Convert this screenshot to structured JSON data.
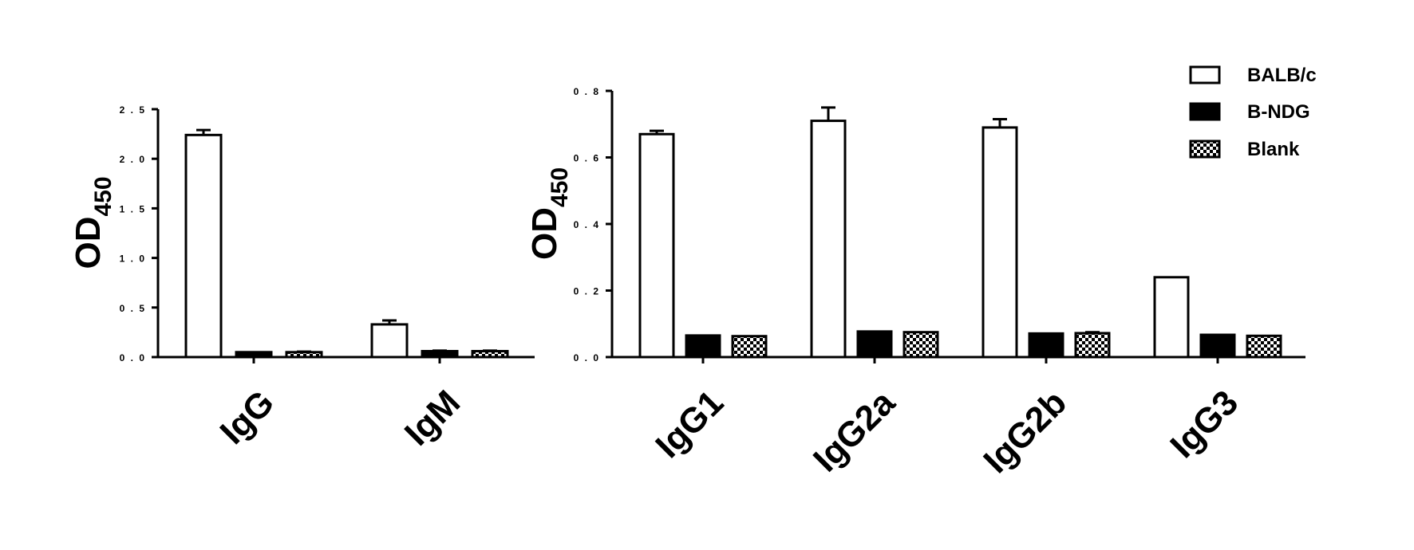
{
  "legend": [
    {
      "name": "BALB/c",
      "fill": "#ffffff"
    },
    {
      "name": "B-NDG",
      "fill": "#000000"
    },
    {
      "name": "Blank",
      "fill": "checker"
    }
  ],
  "chart_data": [
    {
      "type": "bar",
      "ylabel": "OD",
      "ylabel_subscript": "450",
      "ylim": [
        0,
        2.5
      ],
      "yticks": [
        "0.0",
        "0.5",
        "1.0",
        "1.5",
        "2.0",
        "2.5"
      ],
      "categories": [
        "IgG",
        "IgM"
      ],
      "series": [
        {
          "name": "BALB/c",
          "values": [
            2.24,
            0.33
          ],
          "errors": [
            0.05,
            0.04
          ]
        },
        {
          "name": "B-NDG",
          "values": [
            0.05,
            0.06
          ],
          "errors": [
            0.0,
            0.005
          ]
        },
        {
          "name": "Blank",
          "values": [
            0.05,
            0.06
          ],
          "errors": [
            0.005,
            0.005
          ]
        }
      ]
    },
    {
      "type": "bar",
      "ylabel": "OD",
      "ylabel_subscript": "450",
      "ylim": [
        0,
        0.8
      ],
      "yticks": [
        "0.0",
        "0.2",
        "0.4",
        "0.6",
        "0.8"
      ],
      "categories": [
        "IgG1",
        "IgG2a",
        "IgG2b",
        "IgG3"
      ],
      "legend_position": "top-right",
      "series": [
        {
          "name": "BALB/c",
          "values": [
            0.67,
            0.71,
            0.69,
            0.24
          ],
          "errors": [
            0.01,
            0.04,
            0.025,
            0.0
          ]
        },
        {
          "name": "B-NDG",
          "values": [
            0.065,
            0.077,
            0.071,
            0.067
          ],
          "errors": [
            0.0,
            0.0,
            0.0,
            0.0
          ]
        },
        {
          "name": "Blank",
          "values": [
            0.063,
            0.075,
            0.072,
            0.064
          ],
          "errors": [
            0.0,
            0.0,
            0.003,
            0.0
          ]
        }
      ]
    }
  ]
}
